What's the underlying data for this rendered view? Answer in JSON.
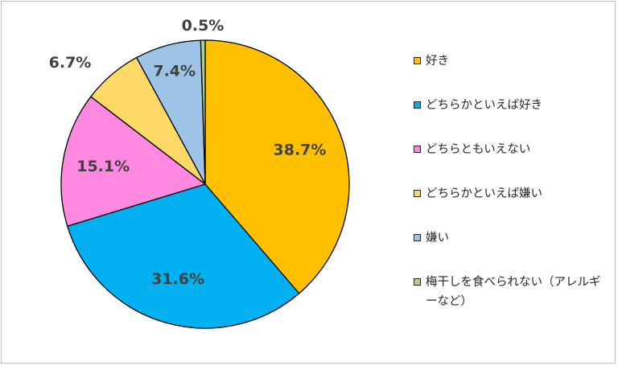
{
  "chart_data": {
    "type": "pie",
    "categories": [
      "好き",
      "どちらかといえば好き",
      "どちらともいえない",
      "どちらかといえば嫌い",
      "嫌い",
      "梅干しを食べられない（アレルギーなど）"
    ],
    "values": [
      38.7,
      31.6,
      15.1,
      6.7,
      7.4,
      0.5
    ],
    "labels": [
      "38.7%",
      "31.6%",
      "15.1%",
      "6.7%",
      "7.4%",
      "0.5%"
    ],
    "colors": [
      "#FFC000",
      "#00B0F0",
      "#FF88E0",
      "#FFD966",
      "#9DC3E6",
      "#A9D18E"
    ],
    "start_angle_deg": 0,
    "direction": "clockwise",
    "legend_position": "right"
  }
}
